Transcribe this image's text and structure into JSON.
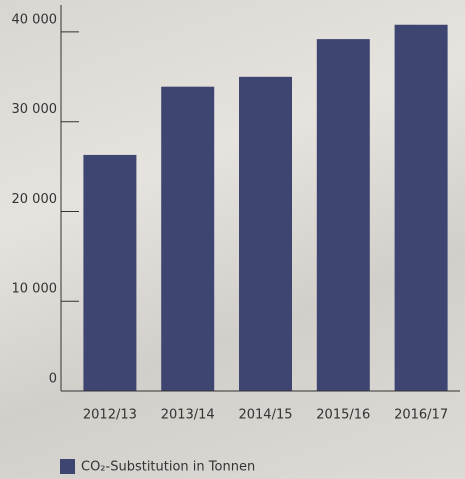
{
  "chart_data": {
    "type": "bar",
    "categories": [
      "2012/13",
      "2013/14",
      "2014/15",
      "2015/16",
      "2016/17"
    ],
    "series": [
      {
        "name": "CO₂-Substitution in Tonnen",
        "color": "#3d4570",
        "values": [
          26300,
          33900,
          35000,
          39200,
          40800
        ]
      }
    ],
    "ylim": [
      0,
      43000
    ],
    "yticks": [
      0,
      {
        "value": 10000,
        "label": "10 000"
      },
      {
        "value": 20000,
        "label": "20 000"
      },
      {
        "value": 30000,
        "label": "30 000"
      },
      {
        "value": 40000,
        "label": "40 000"
      }
    ]
  }
}
